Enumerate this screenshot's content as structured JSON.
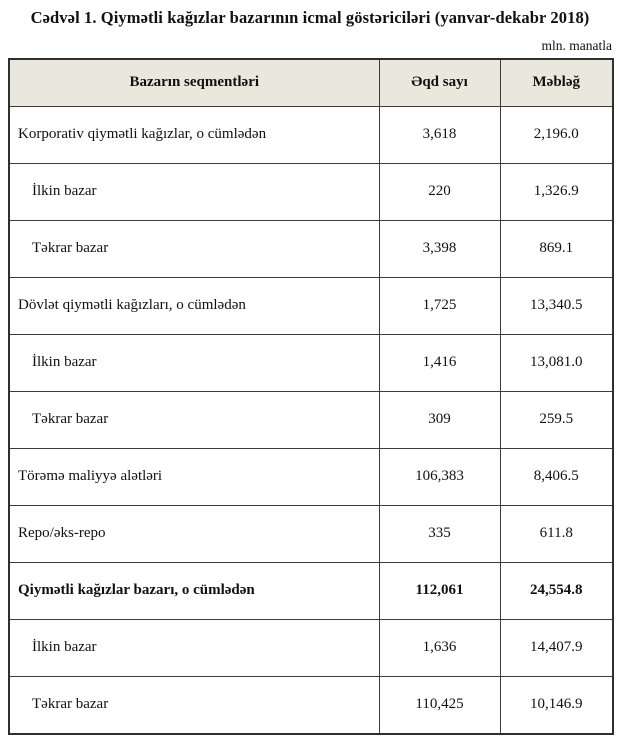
{
  "page": {
    "title": "Cədvəl 1. Qiymətli kağızlar bazarının icmal göstəriciləri (yanvar-dekabr 2018)",
    "unit_note": "mln. manatla"
  },
  "table": {
    "columns": {
      "segment": "Bazarın seqmentləri",
      "deals": "Əqd sayı",
      "amount": "Məbləğ"
    },
    "rows": [
      {
        "label": "Korporativ qiymətli kağızlar, o cümlədən",
        "deals": "3,618",
        "amount": "2,196.0"
      },
      {
        "label": "İlkin bazar",
        "deals": "220",
        "amount": "1,326.9"
      },
      {
        "label": "Təkrar bazar",
        "deals": "3,398",
        "amount": "869.1"
      },
      {
        "label": "Dövlət qiymətli kağızları, o cümlədən",
        "deals": "1,725",
        "amount": "13,340.5"
      },
      {
        "label": "İlkin bazar",
        "deals": "1,416",
        "amount": "13,081.0"
      },
      {
        "label": "Təkrar bazar",
        "deals": "309",
        "amount": "259.5"
      },
      {
        "label": "Törəmə maliyyə alətləri",
        "deals": "106,383",
        "amount": "8,406.5"
      },
      {
        "label": "Repo/əks-repo",
        "deals": "335",
        "amount": "611.8"
      },
      {
        "label": "Qiymətli kağızlar bazarı, o cümlədən",
        "deals": "112,061",
        "amount": "24,554.8"
      },
      {
        "label": "İlkin bazar",
        "deals": "1,636",
        "amount": "14,407.9"
      },
      {
        "label": "Təkrar bazar",
        "deals": "110,425",
        "amount": "10,146.9"
      }
    ],
    "colors": {
      "header_bg": "#eae8dc",
      "border": "#3b3b3b",
      "text": "#111111"
    }
  }
}
